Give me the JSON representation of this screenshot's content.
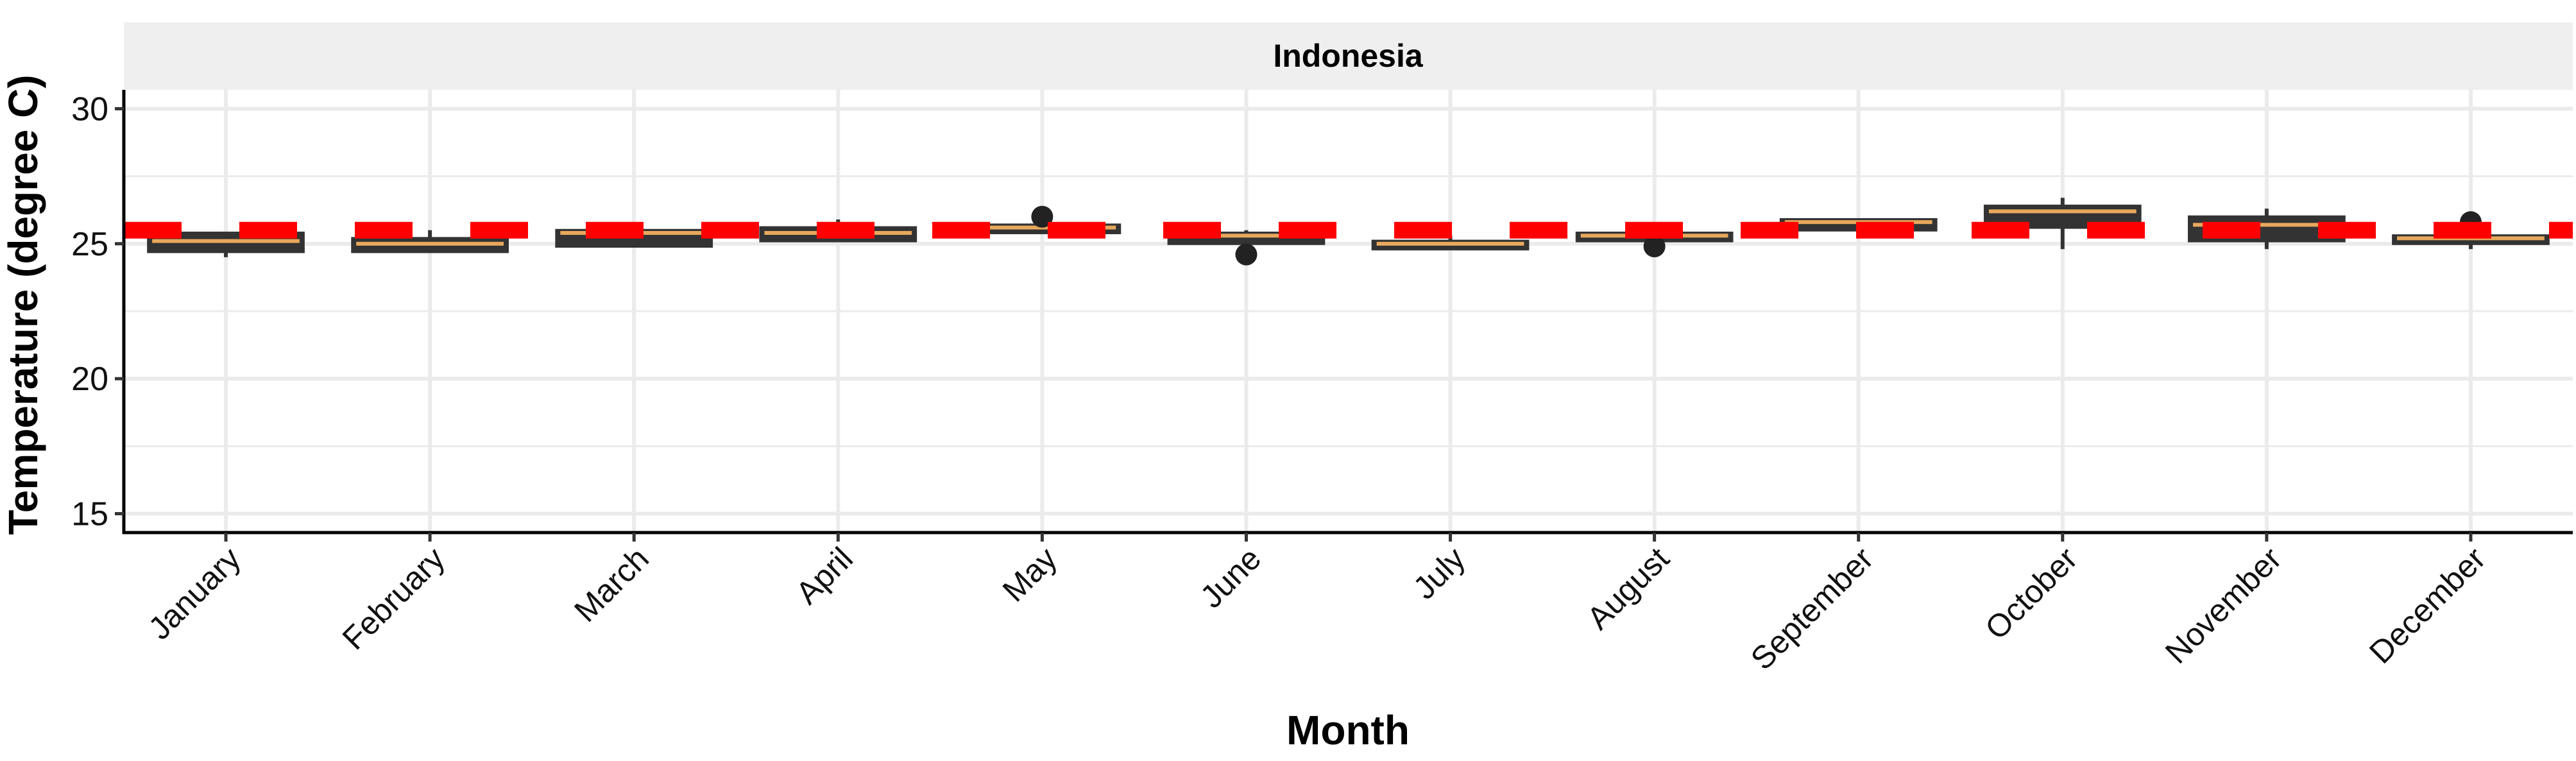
{
  "chart_data": {
    "type": "box",
    "facet_title": "Indonesia",
    "xlabel": "Month",
    "ylabel": "Temperature (degree C)",
    "ylim": [
      14.3,
      30.7
    ],
    "yticks": [
      15,
      20,
      25,
      30
    ],
    "grid": true,
    "categories": [
      "January",
      "February",
      "March",
      "April",
      "May",
      "June",
      "July",
      "August",
      "September",
      "October",
      "November",
      "December"
    ],
    "boxes": [
      {
        "month": "January",
        "whisker_low": 24.5,
        "q1": 24.7,
        "median": 25.1,
        "q3": 25.4,
        "whisker_high": 25.4,
        "outliers": []
      },
      {
        "month": "February",
        "whisker_low": 24.7,
        "q1": 24.7,
        "median": 25.0,
        "q3": 25.2,
        "whisker_high": 25.5,
        "outliers": []
      },
      {
        "month": "March",
        "whisker_low": 24.9,
        "q1": 24.9,
        "median": 25.4,
        "q3": 25.5,
        "whisker_high": 25.7,
        "outliers": []
      },
      {
        "month": "April",
        "whisker_low": 25.1,
        "q1": 25.1,
        "median": 25.4,
        "q3": 25.6,
        "whisker_high": 25.9,
        "outliers": []
      },
      {
        "month": "May",
        "whisker_low": 25.4,
        "q1": 25.4,
        "median": 25.6,
        "q3": 25.7,
        "whisker_high": 25.7,
        "outliers": [
          26.0
        ]
      },
      {
        "month": "June",
        "whisker_low": 25.0,
        "q1": 25.0,
        "median": 25.3,
        "q3": 25.4,
        "whisker_high": 25.5,
        "outliers": [
          24.6
        ]
      },
      {
        "month": "July",
        "whisker_low": 24.8,
        "q1": 24.8,
        "median": 25.0,
        "q3": 25.1,
        "whisker_high": 25.3,
        "outliers": []
      },
      {
        "month": "August",
        "whisker_low": 25.1,
        "q1": 25.1,
        "median": 25.3,
        "q3": 25.4,
        "whisker_high": 25.5,
        "outliers": [
          24.9
        ]
      },
      {
        "month": "September",
        "whisker_low": 25.5,
        "q1": 25.5,
        "median": 25.8,
        "q3": 25.9,
        "whisker_high": 25.9,
        "outliers": []
      },
      {
        "month": "October",
        "whisker_low": 24.8,
        "q1": 25.6,
        "median": 26.2,
        "q3": 26.4,
        "whisker_high": 26.7,
        "outliers": []
      },
      {
        "month": "November",
        "whisker_low": 24.8,
        "q1": 25.1,
        "median": 25.7,
        "q3": 26.0,
        "whisker_high": 26.3,
        "outliers": []
      },
      {
        "month": "December",
        "whisker_low": 24.8,
        "q1": 25.0,
        "median": 25.2,
        "q3": 25.3,
        "whisker_high": 25.3,
        "outliers": [
          25.8
        ]
      }
    ],
    "reference_line": {
      "value": 25.5,
      "style": "dashed",
      "color": "#ff0000"
    },
    "colors": {
      "box_fill": "#333333",
      "median": "#e8a85c",
      "outlier": "#222222",
      "grid": "#ebebeb",
      "strip": "#efefef"
    }
  }
}
